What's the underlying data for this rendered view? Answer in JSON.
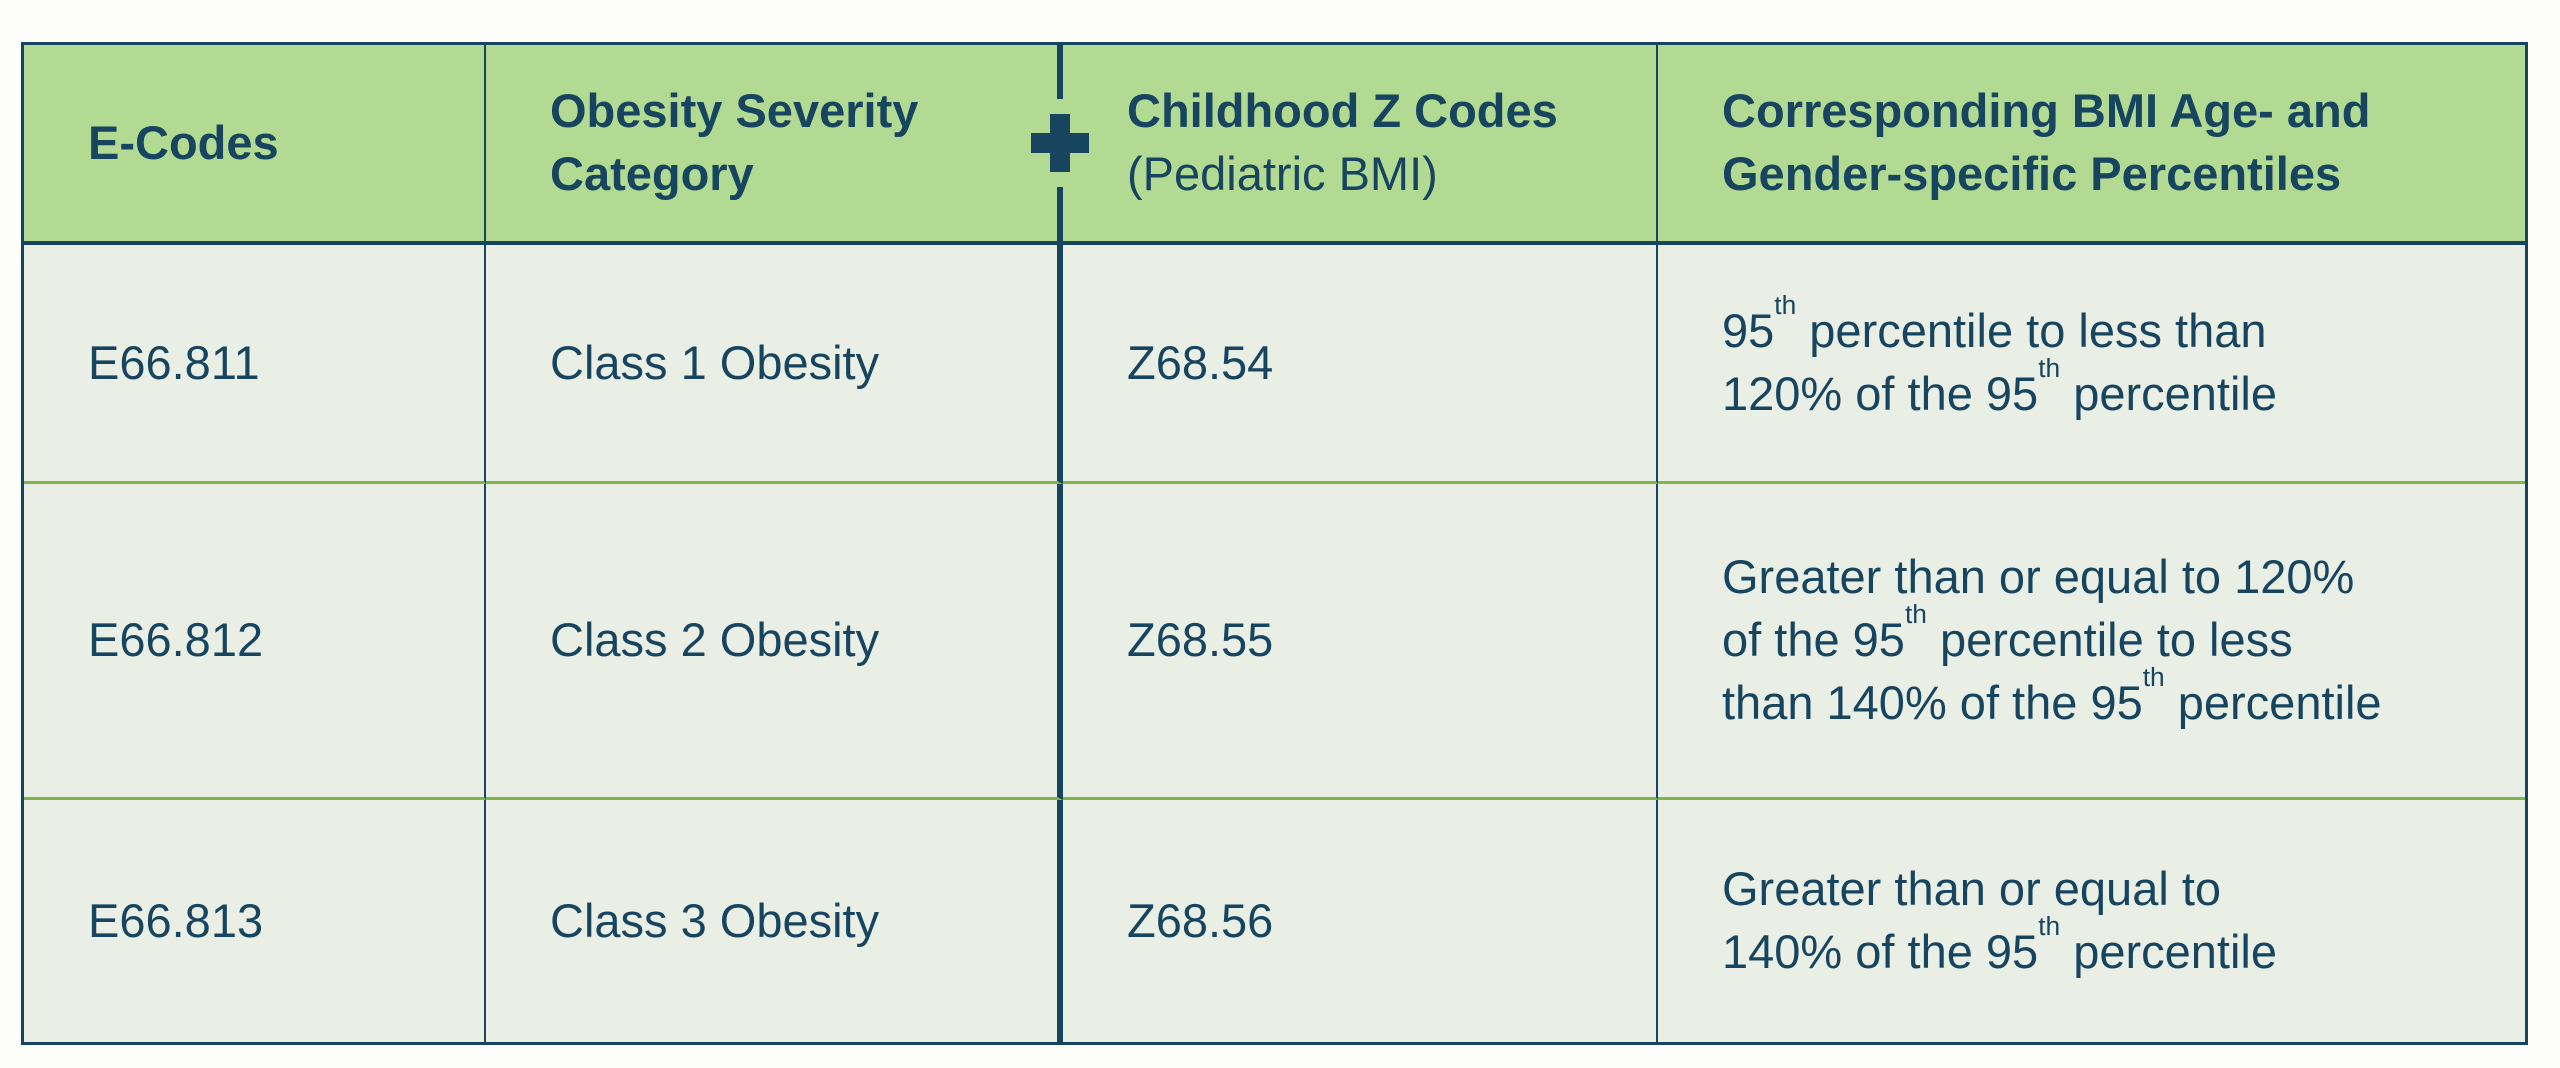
{
  "colors": {
    "navy": "#17455f",
    "header_green": "#b3da92",
    "row_background": "#eaefe6",
    "row_separator_green": "#7eb750",
    "page_background": "#fdfdfc"
  },
  "table": {
    "headers": [
      {
        "id": "ecodes",
        "label": [
          {
            "t": "E-Codes"
          }
        ]
      },
      {
        "id": "category",
        "label": [
          {
            "t": "Obesity Severity"
          },
          {
            "br": true
          },
          {
            "t": "Category"
          }
        ]
      },
      {
        "id": "zcodes",
        "label": [
          {
            "t": "Childhood Z Codes"
          }
        ],
        "sublabel": [
          {
            "t": "(Pediatric BMI)"
          }
        ]
      },
      {
        "id": "percentiles",
        "label": [
          {
            "t": "Corresponding BMI Age- and"
          },
          {
            "br": true
          },
          {
            "t": "Gender-specific Percentiles"
          }
        ]
      }
    ],
    "plus_icon_name": "medical-plus-icon",
    "rows": [
      {
        "ecode": "E66.811",
        "category": "Class 1 Obesity",
        "zcode": "Z68.54",
        "percentile": [
          {
            "t": "95"
          },
          {
            "sup": "th"
          },
          {
            "t": " percentile to less than"
          },
          {
            "br": true
          },
          {
            "t": "120% of the 95"
          },
          {
            "sup": "th"
          },
          {
            "t": " percentile"
          }
        ]
      },
      {
        "ecode": "E66.812",
        "category": "Class 2 Obesity",
        "zcode": "Z68.55",
        "percentile": [
          {
            "t": "Greater than or equal to 120%"
          },
          {
            "br": true
          },
          {
            "t": "of the 95"
          },
          {
            "sup": "th"
          },
          {
            "t": " percentile to less"
          },
          {
            "br": true
          },
          {
            "t": "than 140% of the 95"
          },
          {
            "sup": "th"
          },
          {
            "t": " percentile"
          }
        ]
      },
      {
        "ecode": "E66.813",
        "category": "Class 3 Obesity",
        "zcode": "Z68.56",
        "percentile": [
          {
            "t": "Greater than or equal to"
          },
          {
            "br": true
          },
          {
            "t": "140% of the 95"
          },
          {
            "sup": "th"
          },
          {
            "t": " percentile"
          }
        ]
      }
    ]
  }
}
